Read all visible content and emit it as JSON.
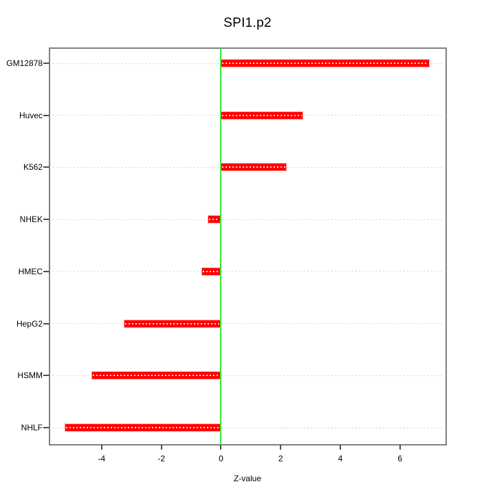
{
  "chart_data": {
    "type": "bar",
    "orientation": "horizontal",
    "title": "SPI1.p2",
    "xlabel": "Z-value",
    "ylabel": "",
    "categories": [
      "GM12878",
      "Huvec",
      "K562",
      "NHEK",
      "HMEC",
      "HepG2",
      "HSMM",
      "NHLF"
    ],
    "values": [
      7.0,
      2.75,
      2.2,
      -0.45,
      -0.65,
      -3.25,
      -4.35,
      -5.25
    ],
    "xticks": [
      -4,
      -2,
      0,
      2,
      4,
      6
    ],
    "xlim": [
      -5.75,
      7.55
    ],
    "zero_reference_line": 0,
    "grid": "horizontal-dotted",
    "legend": "none",
    "colors": {
      "bar": "#ff0000",
      "bar_edge": "#ff9c9c",
      "bar_center_dots": "#ffdcdc",
      "zero_line": "#3ce63c",
      "gridline": "#c8c8c8",
      "frame": "#808080",
      "tick": "#4d4d4d",
      "text": "#000000",
      "background": "#ffffff"
    }
  }
}
